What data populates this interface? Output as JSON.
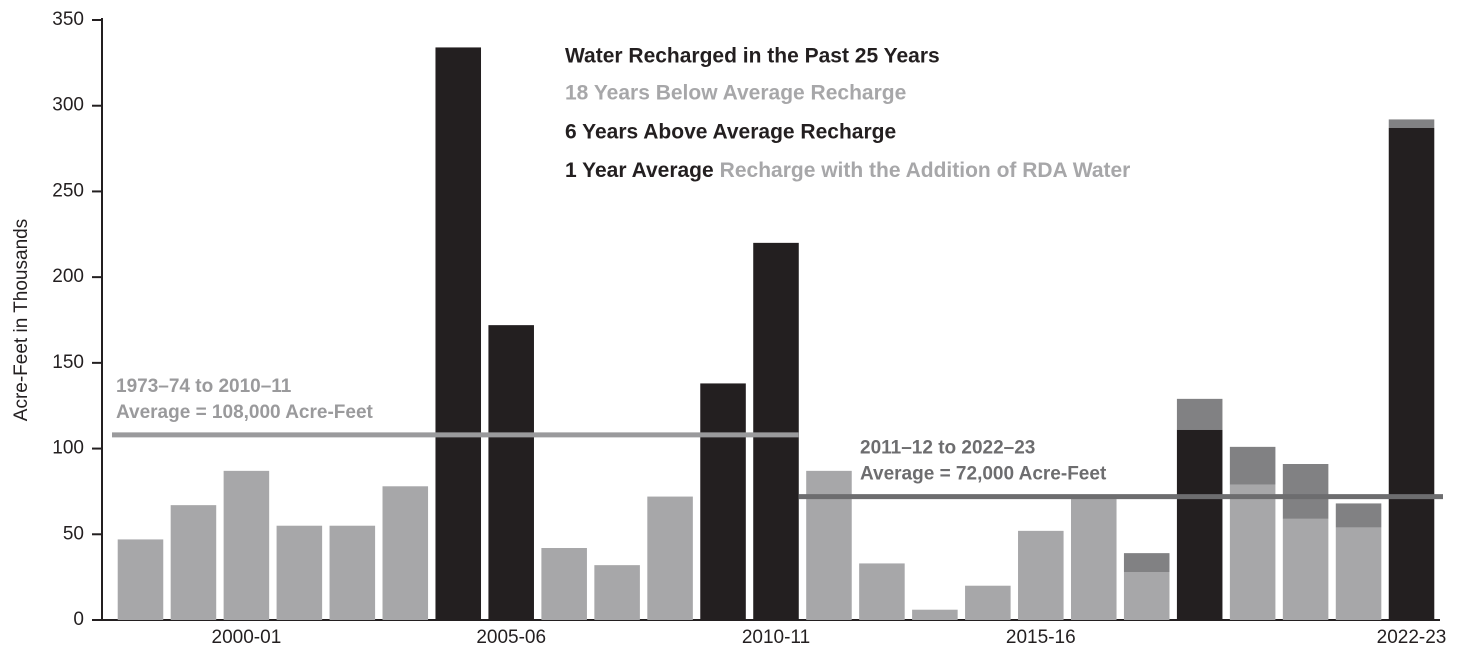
{
  "chart_data": {
    "type": "stacked_bar",
    "title": "Water Recharged in the Past 25 Years",
    "subtitle_lines": [
      "18 Years Below Average Recharge",
      "6 Years Above Average Recharge"
    ],
    "note_parts": [
      "1 Year Average",
      "Recharge with the Addition of RDA Water"
    ],
    "y_label": "Acre-Feet in Thousands",
    "categories": [
      null,
      null,
      "2000-01",
      null,
      null,
      null,
      null,
      "2005-06",
      null,
      null,
      null,
      null,
      "2010-11",
      null,
      null,
      null,
      null,
      "2015-16",
      null,
      null,
      null,
      null,
      null,
      null,
      "2022-23"
    ],
    "series": [
      {
        "color": "#a7a7a9",
        "values": [
          47,
          67,
          87,
          55,
          55,
          78,
          null,
          null,
          42,
          32,
          72,
          null,
          null,
          87,
          33,
          6,
          20,
          52,
          72,
          28,
          null,
          79,
          59,
          54,
          null
        ]
      },
      {
        "color": "#231f20",
        "values": [
          null,
          null,
          null,
          null,
          null,
          null,
          334,
          172,
          null,
          null,
          null,
          138,
          220,
          null,
          null,
          null,
          null,
          null,
          null,
          null,
          111,
          null,
          null,
          null,
          287
        ]
      },
      {
        "color": "#818183",
        "values": [
          null,
          null,
          null,
          null,
          null,
          null,
          null,
          null,
          null,
          null,
          null,
          null,
          null,
          null,
          null,
          null,
          null,
          null,
          null,
          11,
          18,
          22,
          32,
          14,
          5
        ]
      }
    ],
    "averages": [
      {
        "lines": [
          "1973–74 to 2010–11",
          "Average = 108,000 Acre-Feet"
        ],
        "value": 108,
        "color": "#9a9a9c"
      },
      {
        "lines": [
          "2011–12 to 2022–23",
          "Average = 72,000 Acre-Feet"
        ],
        "value": 72,
        "color": "#6d6d6f"
      }
    ],
    "ylim": [
      0,
      350
    ],
    "yticks": [
      0,
      50,
      100,
      150,
      200,
      250,
      300,
      350
    ]
  }
}
